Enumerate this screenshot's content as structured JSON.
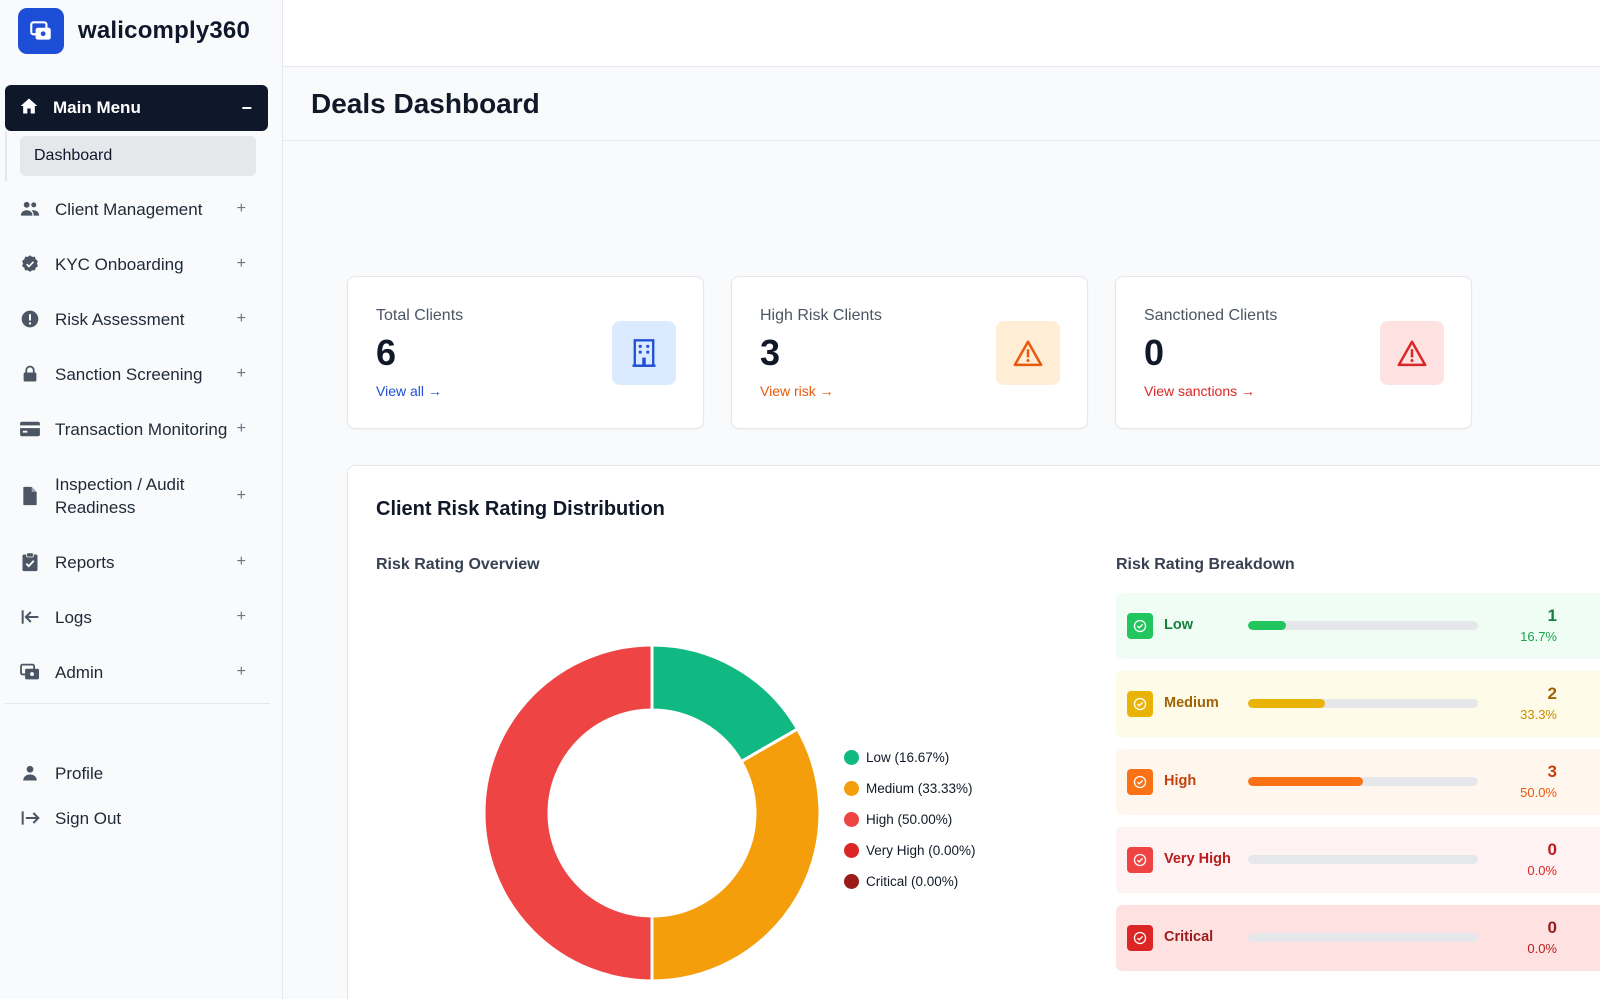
{
  "brand": {
    "name": "walicomply360"
  },
  "sidebar": {
    "main_menu": {
      "label": "Main Menu",
      "toggle": "−"
    },
    "submenu": [
      {
        "label": "Dashboard"
      }
    ],
    "items": [
      {
        "label": "Client Management",
        "icon": "users-icon",
        "toggle": "+"
      },
      {
        "label": "KYC Onboarding",
        "icon": "verified-badge-icon",
        "toggle": "+"
      },
      {
        "label": "Risk Assessment",
        "icon": "alert-circle-icon",
        "toggle": "+"
      },
      {
        "label": "Sanction Screening",
        "icon": "lock-icon",
        "toggle": "+"
      },
      {
        "label": "Transaction Monitoring",
        "icon": "credit-card-icon",
        "toggle": "+"
      },
      {
        "label": "Inspection / Audit Readiness",
        "icon": "document-icon",
        "toggle": "+"
      },
      {
        "label": "Reports",
        "icon": "clipboard-check-icon",
        "toggle": "+"
      },
      {
        "label": "Logs",
        "icon": "arrow-left-bar-icon",
        "toggle": "+"
      },
      {
        "label": "Admin",
        "icon": "admin-icon",
        "toggle": "+"
      }
    ],
    "bottom": [
      {
        "label": "Profile",
        "icon": "person-icon"
      },
      {
        "label": "Sign Out",
        "icon": "sign-out-icon"
      }
    ]
  },
  "page": {
    "title": "Deals Dashboard"
  },
  "cards": [
    {
      "label": "Total Clients",
      "value": "6",
      "link": "View all →",
      "icon": "building-icon",
      "color": "#1d4ed8"
    },
    {
      "label": "High Risk Clients",
      "value": "3",
      "link": "View risk →",
      "icon": "warning-triangle-icon",
      "color": "#ea580c"
    },
    {
      "label": "Sanctioned Clients",
      "value": "0",
      "link": "View sanctions →",
      "icon": "warning-triangle-icon",
      "color": "#dc2626"
    }
  ],
  "distribution": {
    "title": "Client Risk Rating Distribution",
    "overview_title": "Risk Rating Overview",
    "breakdown_title": "Risk Rating Breakdown"
  },
  "chart_data": {
    "type": "pie",
    "donut": true,
    "categories": [
      "Low",
      "Medium",
      "High",
      "Very High",
      "Critical"
    ],
    "values": [
      16.67,
      33.33,
      50.0,
      0.0,
      0.0
    ],
    "colors": [
      "#10b981",
      "#f59e0b",
      "#ef4444",
      "#dc2626",
      "#991b1b"
    ],
    "legend": [
      "Low (16.67%)",
      "Medium (33.33%)",
      "High (50.00%)",
      "Very High (0.00%)",
      "Critical (0.00%)"
    ],
    "legend_position": "right"
  },
  "breakdown": [
    {
      "label": "Low",
      "count": "1",
      "pct": "16.7%",
      "fraction": 0.167,
      "bg": "#f0fdf4",
      "accent": "#22c55e",
      "text": "#15803d",
      "pct_color": "#16a34a"
    },
    {
      "label": "Medium",
      "count": "2",
      "pct": "33.3%",
      "fraction": 0.333,
      "bg": "#fefce8",
      "accent": "#eab308",
      "text": "#a16207",
      "pct_color": "#ca8a04"
    },
    {
      "label": "High",
      "count": "3",
      "pct": "50.0%",
      "fraction": 0.5,
      "bg": "#fff7ed",
      "accent": "#f97316",
      "text": "#c2410c",
      "pct_color": "#ea580c"
    },
    {
      "label": "Very High",
      "count": "0",
      "pct": "0.0%",
      "fraction": 0.0,
      "bg": "#fef2f2",
      "accent": "#ef4444",
      "text": "#b91c1c",
      "pct_color": "#dc2626"
    },
    {
      "label": "Critical",
      "count": "0",
      "pct": "0.0%",
      "fraction": 0.0,
      "bg": "#fee2e2",
      "accent": "#dc2626",
      "text": "#991b1b",
      "pct_color": "#b91c1c"
    }
  ]
}
